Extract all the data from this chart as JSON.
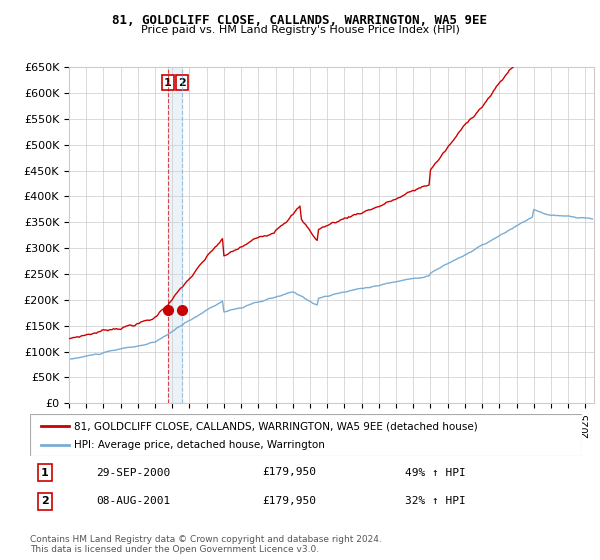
{
  "title": "81, GOLDCLIFF CLOSE, CALLANDS, WARRINGTON, WA5 9EE",
  "subtitle": "Price paid vs. HM Land Registry's House Price Index (HPI)",
  "legend_line1": "81, GOLDCLIFF CLOSE, CALLANDS, WARRINGTON, WA5 9EE (detached house)",
  "legend_line2": "HPI: Average price, detached house, Warrington",
  "transaction1_label": "1",
  "transaction1_date": "29-SEP-2000",
  "transaction1_price": "£179,950",
  "transaction1_change": "49% ↑ HPI",
  "transaction2_label": "2",
  "transaction2_date": "08-AUG-2001",
  "transaction2_price": "£179,950",
  "transaction2_change": "32% ↑ HPI",
  "footer": "Contains HM Land Registry data © Crown copyright and database right 2024.\nThis data is licensed under the Open Government Licence v3.0.",
  "red_color": "#cc0000",
  "blue_color": "#7aadd4",
  "grid_color": "#cccccc",
  "background_color": "#ffffff",
  "plot_bg_color": "#ffffff",
  "marker1_x": 2000.75,
  "marker1_y": 179950,
  "marker2_x": 2001.58,
  "marker2_y": 179950,
  "vline1_x": 2000.75,
  "vline2_x": 2001.58,
  "ylim": [
    0,
    650000
  ],
  "xlim_start": 1995,
  "xlim_end": 2025.5
}
